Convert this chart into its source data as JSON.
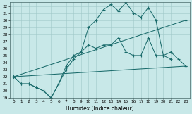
{
  "xlabel": "Humidex (Indice chaleur)",
  "bg_color": "#c8e8e8",
  "line_color": "#1a6b6b",
  "ylim": [
    19,
    32.5
  ],
  "xlim": [
    -0.5,
    23.5
  ],
  "line1_x": [
    0,
    1,
    2,
    3,
    4,
    5,
    6,
    7,
    8,
    9,
    10,
    11,
    12,
    13,
    14,
    15,
    16,
    17,
    18,
    19,
    20,
    21
  ],
  "line1_y": [
    22,
    21,
    21,
    20.5,
    20,
    19,
    21,
    23,
    24.5,
    25.5,
    29,
    30,
    31.5,
    32.2,
    31.3,
    32.5,
    31,
    30.4,
    31.8,
    30,
    25,
    24.5
  ],
  "line2_x": [
    0,
    1,
    2,
    3,
    4,
    5,
    6,
    7,
    8,
    9,
    10,
    11,
    12,
    13,
    14,
    15,
    16,
    17,
    18,
    19,
    20,
    21,
    22,
    23
  ],
  "line2_y": [
    22,
    21,
    21,
    20.5,
    20,
    19,
    21,
    23.5,
    25,
    25.5,
    26.5,
    26,
    26.5,
    26.5,
    27.5,
    25.5,
    25,
    25,
    27.5,
    25,
    25,
    25.5,
    24.5,
    23.5
  ],
  "line3_x": [
    0,
    23
  ],
  "line3_y": [
    22,
    30
  ],
  "line4_x": [
    0,
    23
  ],
  "line4_y": [
    22,
    23.5
  ],
  "yticks": [
    19,
    20,
    21,
    22,
    23,
    24,
    25,
    26,
    27,
    28,
    29,
    30,
    31,
    32
  ],
  "xticks": [
    0,
    1,
    2,
    3,
    4,
    5,
    6,
    7,
    8,
    9,
    10,
    11,
    12,
    13,
    14,
    15,
    16,
    17,
    18,
    19,
    20,
    21,
    22,
    23
  ]
}
